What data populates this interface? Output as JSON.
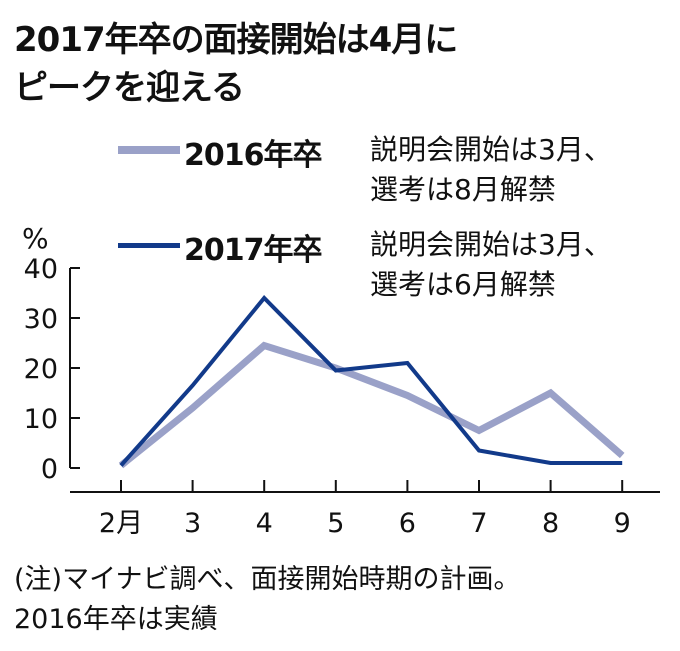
{
  "title": {
    "line1": "2017年卒の面接開始は4月に",
    "line2": "ピークを迎える"
  },
  "legend": [
    {
      "name": "2016年卒",
      "desc_line1": "説明会開始は3月、",
      "desc_line2": "選考は8月解禁",
      "color": "#9aa1c8"
    },
    {
      "name": "2017年卒",
      "desc_line1": "説明会開始は3月、",
      "desc_line2": "選考は6月解禁",
      "color": "#123a8a"
    }
  ],
  "note": {
    "line1": "(注)マイナビ調べ、面接開始時期の計画。",
    "line2": "2016年卒は実績"
  },
  "chart_data": {
    "type": "line",
    "ylabel": "%",
    "ylim": [
      0,
      40
    ],
    "yticks": [
      0,
      10,
      20,
      30,
      40
    ],
    "x_tick_labels": [
      "2月",
      "3",
      "4",
      "5",
      "6",
      "7",
      "8",
      "9"
    ],
    "grid": false,
    "series": [
      {
        "name": "2016年卒",
        "color": "#9aa1c8",
        "values": [
          0.5,
          12,
          24.5,
          20,
          14.5,
          7.5,
          15,
          2.5
        ]
      },
      {
        "name": "2017年卒",
        "color": "#123a8a",
        "values": [
          0.5,
          16.5,
          34,
          19.5,
          21,
          3.5,
          1,
          1
        ]
      }
    ]
  }
}
